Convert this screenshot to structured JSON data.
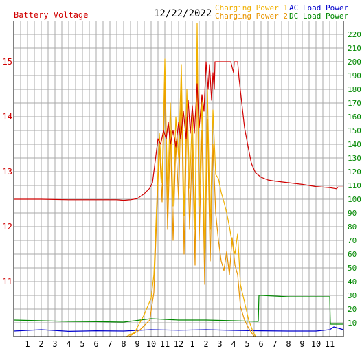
{
  "colors": {
    "battery": "#d00000",
    "charging1": "#f0b000",
    "charging2": "#e89400",
    "ac_load": "#0000cc",
    "dc_load": "#008800",
    "grid": "#a8a8a8",
    "axis": "#000000"
  },
  "chart_data": {
    "type": "line",
    "title": "12/22/2022",
    "legend": {
      "placement": "top",
      "entries": [
        "Battery Voltage",
        "Charging Power 1",
        "Charging Power 2",
        "AC Load Power",
        "DC Load Power"
      ]
    },
    "grid": true,
    "x": {
      "tick_labels": [
        "1",
        "2",
        "3",
        "4",
        "5",
        "6",
        "7",
        "8",
        "9",
        "10",
        "11",
        "12",
        "1",
        "2",
        "3",
        "4",
        "5",
        "6",
        "7",
        "8",
        "9",
        "10",
        "11"
      ],
      "range": [
        0,
        24
      ]
    },
    "y_left": {
      "label": "Battery Voltage",
      "range": [
        10,
        15.75
      ],
      "tick_labels": [
        "11",
        "12",
        "13",
        "14",
        "15"
      ]
    },
    "y_right": {
      "range": [
        0,
        230
      ],
      "tick_labels": [
        "10",
        "20",
        "30",
        "40",
        "50",
        "60",
        "70",
        "80",
        "90",
        "100",
        "110",
        "120",
        "130",
        "140",
        "150",
        "160",
        "170",
        "180",
        "190",
        "200",
        "210",
        "220"
      ]
    },
    "series": [
      {
        "name": "Battery Voltage",
        "axis": "left",
        "points": [
          [
            0,
            12.5
          ],
          [
            2,
            12.5
          ],
          [
            4,
            12.49
          ],
          [
            6,
            12.49
          ],
          [
            7.5,
            12.49
          ],
          [
            8,
            12.48
          ],
          [
            8.5,
            12.49
          ],
          [
            9,
            12.51
          ],
          [
            9.5,
            12.6
          ],
          [
            9.9,
            12.7
          ],
          [
            10.1,
            12.8
          ],
          [
            10.3,
            13.2
          ],
          [
            10.5,
            13.6
          ],
          [
            10.7,
            13.5
          ],
          [
            10.9,
            13.75
          ],
          [
            11.1,
            13.6
          ],
          [
            11.25,
            13.9
          ],
          [
            11.4,
            13.5
          ],
          [
            11.6,
            13.75
          ],
          [
            11.8,
            13.45
          ],
          [
            12,
            13.9
          ],
          [
            12.15,
            13.6
          ],
          [
            12.35,
            14.1
          ],
          [
            12.55,
            13.6
          ],
          [
            12.7,
            14.3
          ],
          [
            12.85,
            13.7
          ],
          [
            13.0,
            14.2
          ],
          [
            13.15,
            13.7
          ],
          [
            13.35,
            14.6
          ],
          [
            13.5,
            13.8
          ],
          [
            13.7,
            14.4
          ],
          [
            13.85,
            14.1
          ],
          [
            14.0,
            15.0
          ],
          [
            14.15,
            14.5
          ],
          [
            14.25,
            14.95
          ],
          [
            14.4,
            14.3
          ],
          [
            14.5,
            14.8
          ],
          [
            14.6,
            14.5
          ],
          [
            14.65,
            15.0
          ],
          [
            15.0,
            15.0
          ],
          [
            15.4,
            15.0
          ],
          [
            15.8,
            15.0
          ],
          [
            16.0,
            14.8
          ],
          [
            16.05,
            15.0
          ],
          [
            16.3,
            15.0
          ],
          [
            16.4,
            14.7
          ],
          [
            16.8,
            13.8
          ],
          [
            17.1,
            13.4
          ],
          [
            17.3,
            13.15
          ],
          [
            17.6,
            12.98
          ],
          [
            18,
            12.9
          ],
          [
            18.5,
            12.85
          ],
          [
            19,
            12.83
          ],
          [
            20,
            12.8
          ],
          [
            21,
            12.77
          ],
          [
            22,
            12.73
          ],
          [
            23,
            12.71
          ],
          [
            23.5,
            12.69
          ],
          [
            23.6,
            12.72
          ],
          [
            24,
            12.72
          ]
        ]
      },
      {
        "name": "Charging Power 1",
        "axis": "right",
        "points": [
          [
            8.2,
            0
          ],
          [
            8.8,
            3
          ],
          [
            9.5,
            16
          ],
          [
            10.0,
            28
          ],
          [
            10.2,
            45
          ],
          [
            10.4,
            95
          ],
          [
            10.6,
            148
          ],
          [
            10.8,
            112
          ],
          [
            11.0,
            202
          ],
          [
            11.2,
            100
          ],
          [
            11.4,
            170
          ],
          [
            11.6,
            95
          ],
          [
            11.8,
            160
          ],
          [
            12.0,
            130
          ],
          [
            12.2,
            198
          ],
          [
            12.4,
            88
          ],
          [
            12.6,
            180
          ],
          [
            12.8,
            108
          ],
          [
            13.0,
            162
          ],
          [
            13.2,
            78
          ],
          [
            13.35,
            228
          ],
          [
            13.5,
            95
          ],
          [
            13.7,
            175
          ],
          [
            13.9,
            60
          ],
          [
            14.1,
            180
          ],
          [
            14.3,
            78
          ],
          [
            14.5,
            165
          ],
          [
            14.7,
            118
          ],
          [
            14.9,
            115
          ],
          [
            15.1,
            105
          ],
          [
            15.3,
            98
          ],
          [
            15.5,
            90
          ],
          [
            15.7,
            80
          ],
          [
            15.9,
            68
          ],
          [
            16.1,
            60
          ],
          [
            16.3,
            75
          ],
          [
            16.5,
            38
          ],
          [
            16.8,
            25
          ],
          [
            17.1,
            12
          ],
          [
            17.4,
            4
          ],
          [
            17.6,
            0
          ]
        ]
      },
      {
        "name": "Charging Power 2",
        "axis": "right",
        "points": [
          [
            8.4,
            0
          ],
          [
            9.2,
            5
          ],
          [
            9.9,
            12
          ],
          [
            10.2,
            32
          ],
          [
            10.4,
            85
          ],
          [
            10.6,
            140
          ],
          [
            10.8,
            98
          ],
          [
            11.0,
            185
          ],
          [
            11.2,
            78
          ],
          [
            11.4,
            150
          ],
          [
            11.6,
            70
          ],
          [
            11.8,
            142
          ],
          [
            12.0,
            100
          ],
          [
            12.2,
            180
          ],
          [
            12.4,
            60
          ],
          [
            12.6,
            160
          ],
          [
            12.8,
            78
          ],
          [
            13.0,
            140
          ],
          [
            13.2,
            52
          ],
          [
            13.35,
            205
          ],
          [
            13.5,
            70
          ],
          [
            13.7,
            150
          ],
          [
            13.9,
            38
          ],
          [
            14.1,
            158
          ],
          [
            14.3,
            55
          ],
          [
            14.5,
            140
          ],
          [
            14.7,
            90
          ],
          [
            14.9,
            70
          ],
          [
            15.1,
            55
          ],
          [
            15.3,
            48
          ],
          [
            15.5,
            62
          ],
          [
            15.7,
            45
          ],
          [
            15.9,
            72
          ],
          [
            16.1,
            52
          ],
          [
            16.3,
            45
          ],
          [
            16.5,
            22
          ],
          [
            16.8,
            12
          ],
          [
            17.1,
            6
          ],
          [
            17.5,
            0
          ]
        ]
      },
      {
        "name": "AC Load Power",
        "axis": "right",
        "points": [
          [
            0,
            4
          ],
          [
            2,
            5
          ],
          [
            4,
            3.8
          ],
          [
            6,
            4.2
          ],
          [
            8,
            4
          ],
          [
            10,
            5
          ],
          [
            12,
            4.6
          ],
          [
            14,
            5
          ],
          [
            16,
            4.5
          ],
          [
            18,
            4.2
          ],
          [
            20,
            4
          ],
          [
            22,
            4
          ],
          [
            23,
            5
          ],
          [
            23.3,
            7
          ],
          [
            24,
            5
          ]
        ]
      },
      {
        "name": "DC Load Power",
        "axis": "right",
        "points": [
          [
            0,
            12
          ],
          [
            2,
            11.5
          ],
          [
            4,
            11
          ],
          [
            6,
            10.8
          ],
          [
            8,
            10.5
          ],
          [
            10,
            13
          ],
          [
            12,
            12
          ],
          [
            14,
            12
          ],
          [
            16,
            11.5
          ],
          [
            17.8,
            11
          ],
          [
            17.85,
            30
          ],
          [
            18,
            30
          ],
          [
            20,
            29
          ],
          [
            22,
            29
          ],
          [
            23.0,
            29
          ],
          [
            23.05,
            9
          ],
          [
            24,
            9
          ]
        ]
      }
    ]
  }
}
